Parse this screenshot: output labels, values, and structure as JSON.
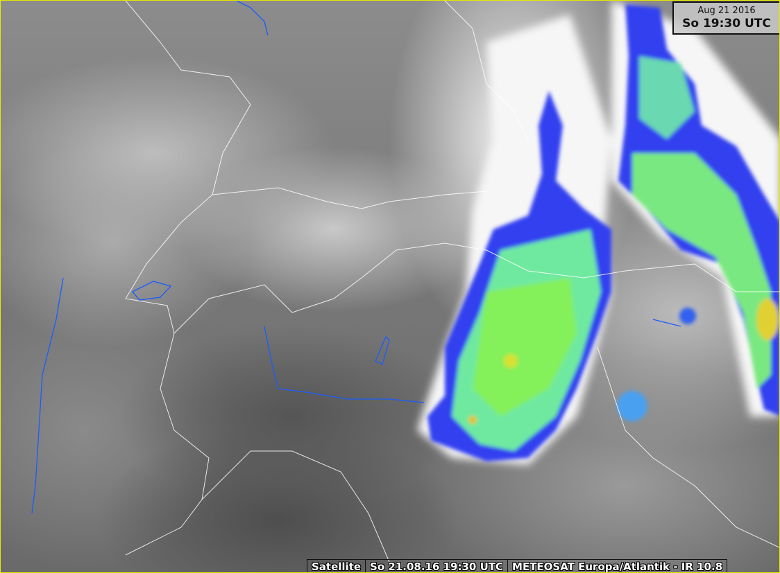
{
  "header": {
    "date": "Aug 21 2016",
    "time": "So 19:30 UTC"
  },
  "footer": {
    "product": "Satellite",
    "timestamp": "So 21.08.16 19:30 UTC",
    "source": "METEOSAT Europa/Atlantik - IR 10.8"
  },
  "colors": {
    "border": "#e8e800",
    "cold_cloud_blue": "#2a3cf0",
    "cold_cloud_green": "#6ef070",
    "coldest_yellow": "#e0e020",
    "rivers": "#1a5cff",
    "borders": "#ffffff"
  }
}
